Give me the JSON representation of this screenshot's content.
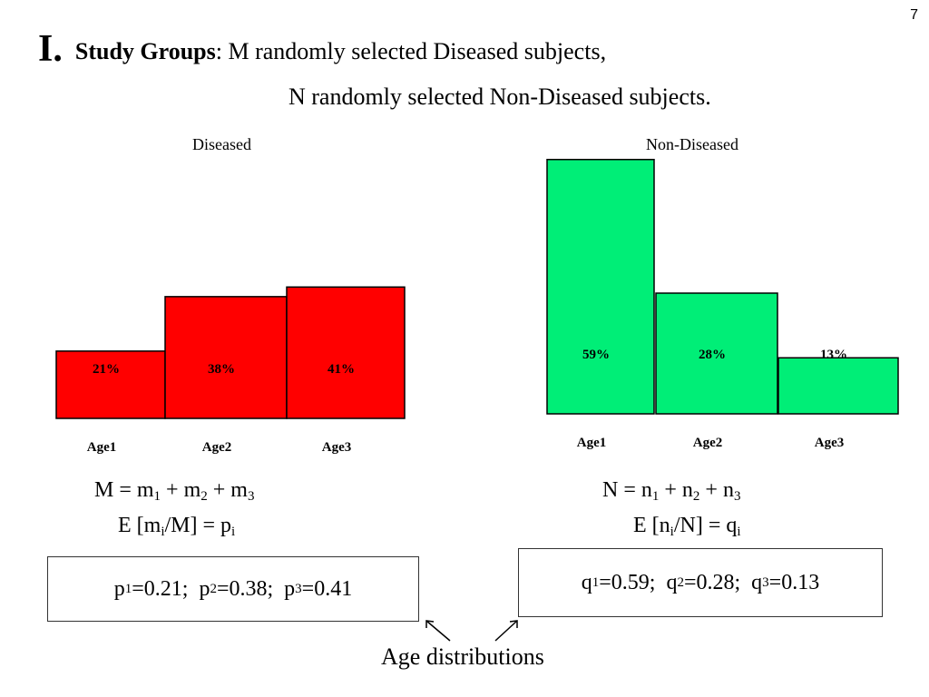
{
  "page_number": "7",
  "heading": {
    "numeral": "I.",
    "bold_label": "Study Groups",
    "line1": ": M randomly selected Diseased subjects,",
    "line2": "N randomly selected Non-Diseased subjects."
  },
  "colors": {
    "diseased": "#ff0000",
    "non_diseased": "#00ee77"
  },
  "chart_data": [
    {
      "type": "bar",
      "title": "Diseased",
      "categories": [
        "Age1",
        "Age2",
        "Age3"
      ],
      "values": [
        21,
        38,
        41
      ],
      "labels": [
        "21%",
        "38%",
        "41%"
      ],
      "ylim": [
        0,
        59
      ],
      "color": "#ff0000"
    },
    {
      "type": "bar",
      "title": "Non-Diseased",
      "categories": [
        "Age1",
        "Age2",
        "Age3"
      ],
      "values": [
        59,
        28,
        13
      ],
      "labels": [
        "59%",
        "28%",
        "13%"
      ],
      "ylim": [
        0,
        59
      ],
      "color": "#00ee77"
    }
  ],
  "formulas": {
    "left": {
      "sum": {
        "lhs": "M = m",
        "s1": "1",
        "mid1": " + m",
        "s2": "2",
        "mid2": " + m",
        "s3": "3"
      },
      "expect": {
        "a": "E [m",
        "s1": "i",
        "b": "/M] = p",
        "s2": "i"
      }
    },
    "right": {
      "sum": {
        "lhs": "N = n",
        "s1": "1",
        "mid1": " + n",
        "s2": "2",
        "mid2": " + n",
        "s3": "3"
      },
      "expect": {
        "a": "E [n",
        "s1": "i",
        "b": "/N] = q",
        "s2": "i"
      }
    }
  },
  "boxes": {
    "left": {
      "v1": "p",
      "s1": "1",
      "t1": "=0.21;  p",
      "s2": "2",
      "t2": "=0.38;  p",
      "s3": "3",
      "t3": "=0.41"
    },
    "right": {
      "v1": "q",
      "s1": "1",
      "t1": "=0.59;  q",
      "s2": "2",
      "t2": "=0.28;  q",
      "s3": "3",
      "t3": "=0.13"
    }
  },
  "annotation": "Age distributions"
}
